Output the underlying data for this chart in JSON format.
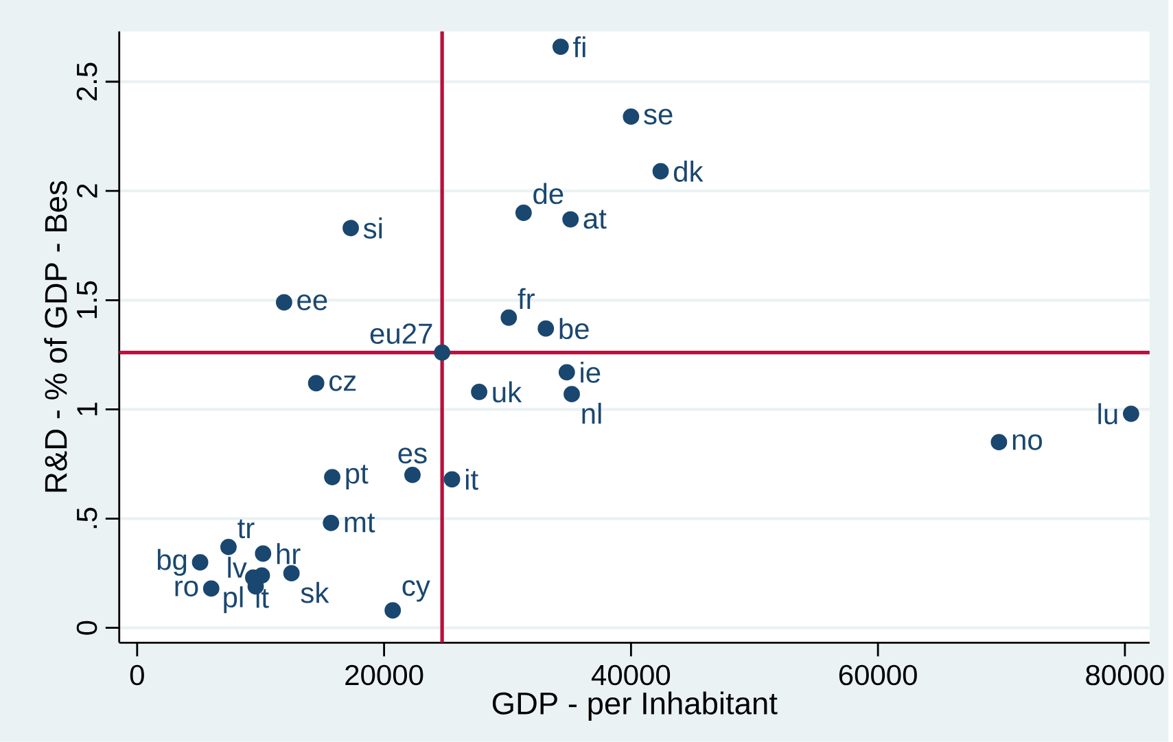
{
  "chart_data": {
    "type": "scatter",
    "xlabel": "GDP - per Inhabitant",
    "ylabel": "R&D - % of GDP - Bes",
    "x": [
      34300,
      40000,
      42400,
      31300,
      35100,
      17300,
      11900,
      30100,
      33100,
      24700,
      34800,
      14500,
      27700,
      35200,
      80500,
      69800,
      15800,
      22300,
      25500,
      15700,
      7400,
      10200,
      5100,
      12500,
      10100,
      9400,
      9600,
      6000,
      20700
    ],
    "values": [
      2.66,
      2.34,
      2.09,
      1.9,
      1.87,
      1.83,
      1.49,
      1.42,
      1.37,
      1.26,
      1.17,
      1.12,
      1.08,
      1.07,
      0.98,
      0.85,
      0.69,
      0.7,
      0.68,
      0.48,
      0.37,
      0.34,
      0.3,
      0.25,
      0.24,
      0.23,
      0.19,
      0.18,
      0.08
    ],
    "color": "#1a476f",
    "marker": "circle",
    "grid": "y",
    "xlim": [
      -1450,
      82000
    ],
    "ylim": [
      -0.068,
      2.73
    ],
    "xticks": [
      0,
      20000,
      40000,
      60000,
      80000
    ],
    "yticks": [
      0,
      {
        "value": 0.5,
        "label": ".5"
      },
      1,
      1.5,
      2,
      2.5
    ],
    "ref_lines": [
      {
        "axis": "x",
        "value": 24700,
        "color": "#b5123e"
      },
      {
        "axis": "y",
        "value": 1.26,
        "color": "#b5123e"
      }
    ],
    "annotations": [
      {
        "text": "fi",
        "x": 34300,
        "y": 2.66
      },
      {
        "text": "se",
        "x": 40000,
        "y": 2.34
      },
      {
        "text": "dk",
        "x": 42400,
        "y": 2.09
      },
      {
        "text": "de",
        "x": 31300,
        "y": 1.9
      },
      {
        "text": "at",
        "x": 35100,
        "y": 1.87
      },
      {
        "text": "si",
        "x": 17300,
        "y": 1.83
      },
      {
        "text": "ee",
        "x": 11900,
        "y": 1.49
      },
      {
        "text": "fr",
        "x": 30100,
        "y": 1.42
      },
      {
        "text": "be",
        "x": 33100,
        "y": 1.37
      },
      {
        "text": "eu27",
        "x": 24700,
        "y": 1.26
      },
      {
        "text": "ie",
        "x": 34800,
        "y": 1.17
      },
      {
        "text": "cz",
        "x": 14500,
        "y": 1.12
      },
      {
        "text": "uk",
        "x": 27700,
        "y": 1.08
      },
      {
        "text": "nl",
        "x": 35200,
        "y": 1.07
      },
      {
        "text": "lu",
        "x": 80500,
        "y": 0.98
      },
      {
        "text": "no",
        "x": 69800,
        "y": 0.85
      },
      {
        "text": "pt",
        "x": 15800,
        "y": 0.69
      },
      {
        "text": "es",
        "x": 22300,
        "y": 0.7
      },
      {
        "text": "it",
        "x": 25500,
        "y": 0.68
      },
      {
        "text": "mt",
        "x": 15700,
        "y": 0.48
      },
      {
        "text": "tr",
        "x": 7400,
        "y": 0.37
      },
      {
        "text": "hr",
        "x": 10200,
        "y": 0.34
      },
      {
        "text": "bg",
        "x": 5100,
        "y": 0.3
      },
      {
        "text": "sk",
        "x": 12500,
        "y": 0.25
      },
      {
        "text": "lt",
        "x": 10100,
        "y": 0.24
      },
      {
        "text": "pl",
        "x": 9400,
        "y": 0.23
      },
      {
        "text": "lv",
        "x": 9600,
        "y": 0.19
      },
      {
        "text": "ro",
        "x": 6000,
        "y": 0.18
      },
      {
        "text": "cy",
        "x": 20700,
        "y": 0.08
      }
    ]
  }
}
